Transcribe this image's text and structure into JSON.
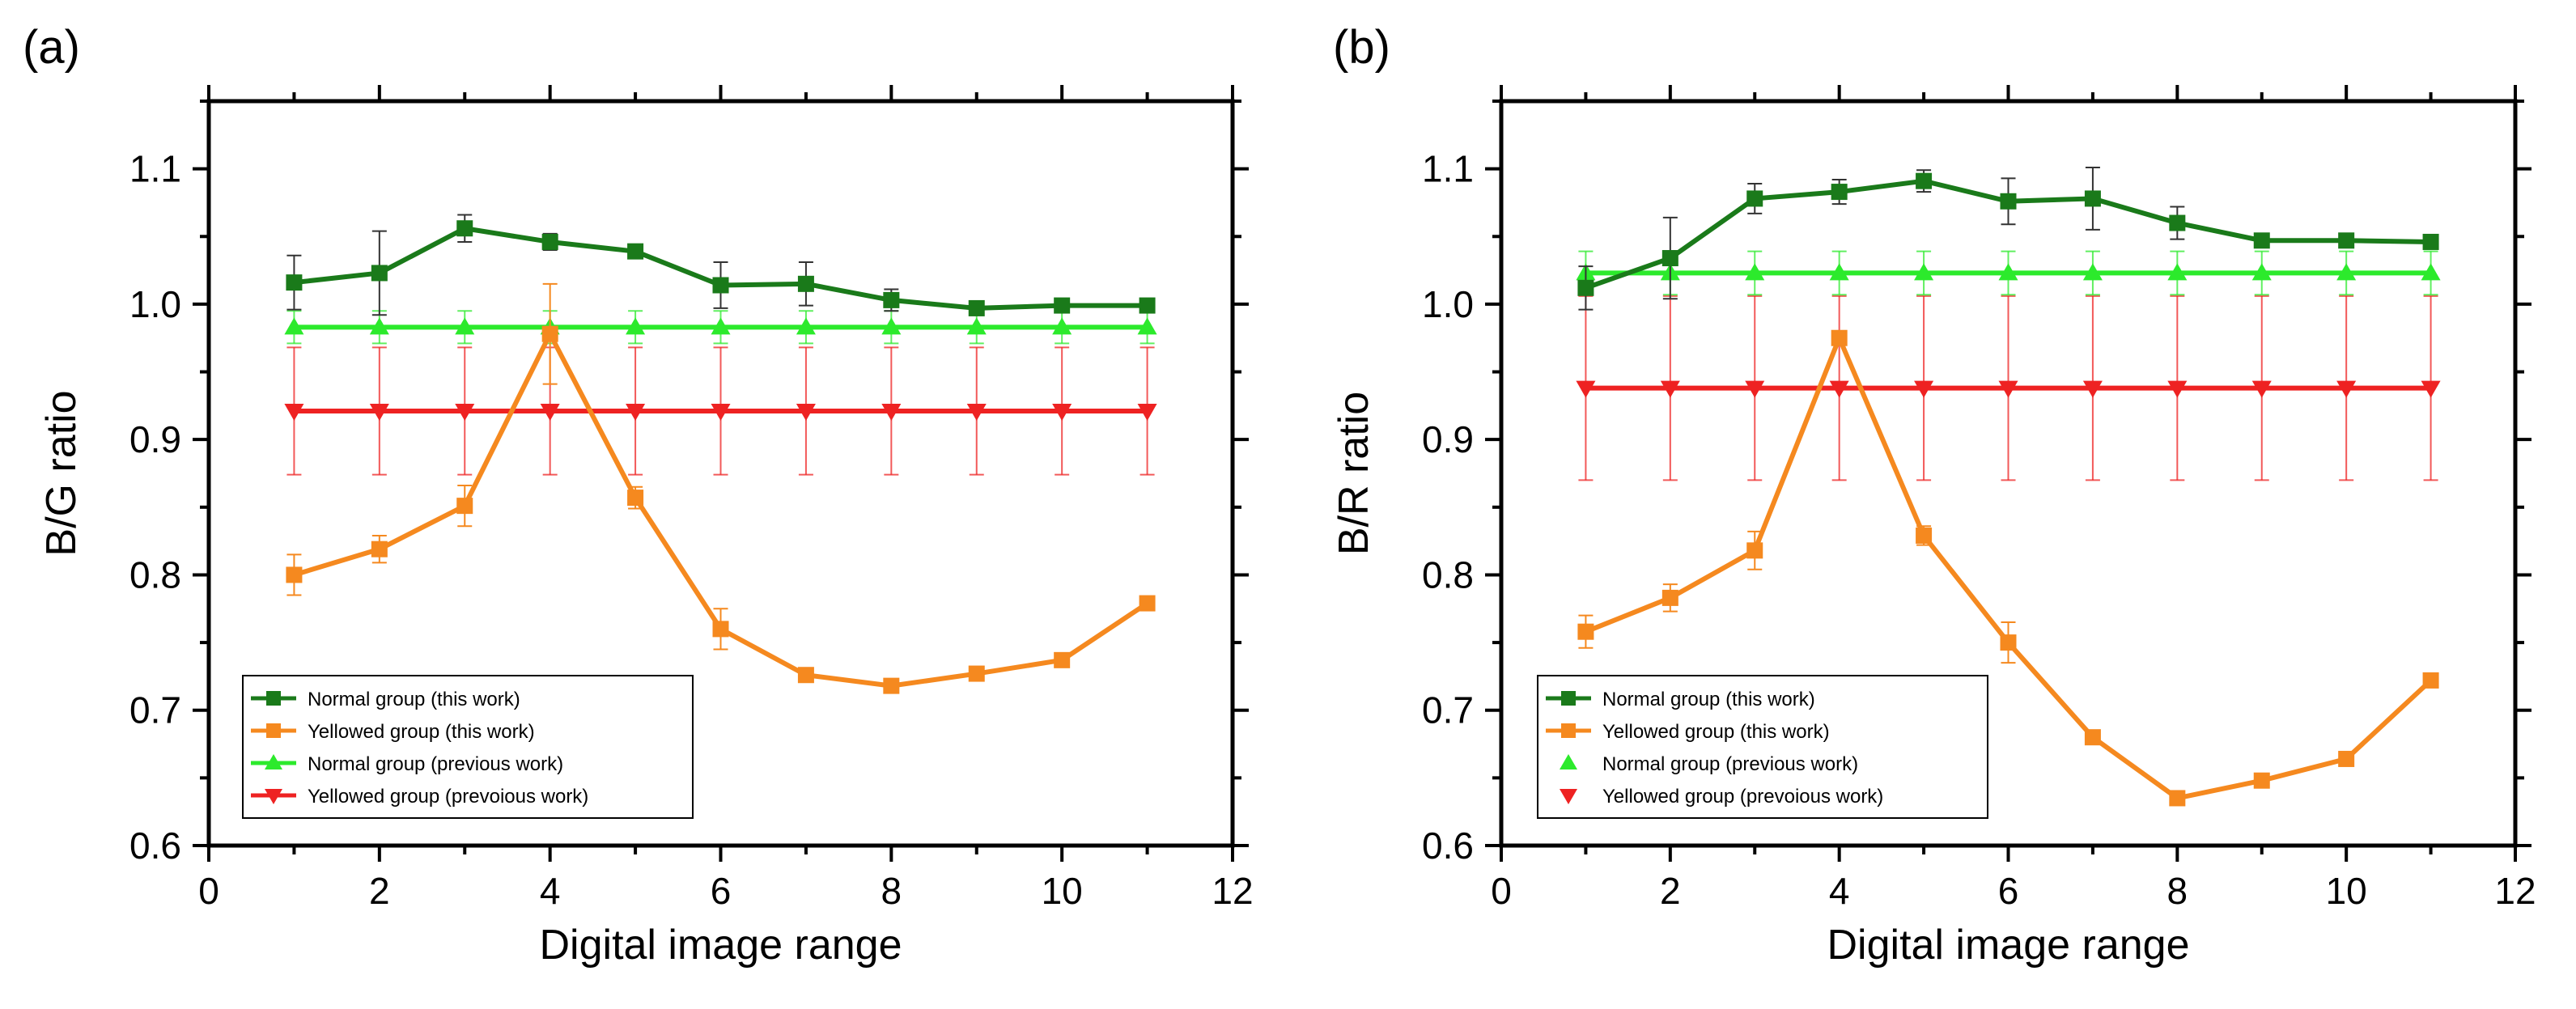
{
  "chart_data": [
    {
      "panel_label": "(a)",
      "type": "line",
      "xlabel": "Digital image range",
      "ylabel": "B/G ratio",
      "xlim": [
        0,
        12
      ],
      "ylim": [
        0.6,
        1.15
      ],
      "xticks": [
        0,
        2,
        4,
        6,
        8,
        10,
        12
      ],
      "xtick_labels": [
        "0",
        "2",
        "4",
        "6",
        "8",
        "10",
        "12"
      ],
      "yticks": [
        0.6,
        0.7,
        0.8,
        0.9,
        1.0,
        1.1
      ],
      "ytick_labels": [
        "0.6",
        "0.7",
        "0.8",
        "0.9",
        "1.0",
        "1.1"
      ],
      "legend_position": "bottom-left",
      "x": [
        1,
        2,
        3,
        4,
        5,
        6,
        7,
        8,
        9,
        10,
        11
      ],
      "series": [
        {
          "name": "Normal group (this work)",
          "color": "#1a7a1a",
          "marker": "square",
          "line": true,
          "values": [
            1.016,
            1.023,
            1.056,
            1.046,
            1.039,
            1.014,
            1.015,
            1.003,
            0.997,
            0.999,
            0.999
          ],
          "errors": [
            0.02,
            0.031,
            0.01,
            0.006,
            0.005,
            0.017,
            0.016,
            0.008,
            0.004,
            0.003,
            0.003
          ]
        },
        {
          "name": "Yellowed group (this work)",
          "color": "#f5891f",
          "marker": "square",
          "line": true,
          "values": [
            0.8,
            0.819,
            0.851,
            0.978,
            0.857,
            0.76,
            0.726,
            0.718,
            0.727,
            0.737,
            0.779
          ],
          "errors": [
            0.015,
            0.01,
            0.015,
            0.037,
            0.008,
            0.015,
            0.004,
            0.003,
            0.004,
            0.004,
            0.004
          ]
        },
        {
          "name": "Normal group (previous work)",
          "color": "#2cea2c",
          "marker": "triangle-up",
          "line": true,
          "values": [
            0.983,
            0.983,
            0.983,
            0.983,
            0.983,
            0.983,
            0.983,
            0.983,
            0.983,
            0.983,
            0.983
          ],
          "errors": [
            0.012,
            0.012,
            0.012,
            0.012,
            0.012,
            0.012,
            0.012,
            0.012,
            0.012,
            0.012,
            0.012
          ]
        },
        {
          "name": "Yellowed group (prevoious work)",
          "color": "#ee2222",
          "marker": "triangle-down",
          "line": true,
          "values": [
            0.921,
            0.921,
            0.921,
            0.921,
            0.921,
            0.921,
            0.921,
            0.921,
            0.921,
            0.921,
            0.921
          ],
          "errors": [
            0.047,
            0.047,
            0.047,
            0.047,
            0.047,
            0.047,
            0.047,
            0.047,
            0.047,
            0.047,
            0.047
          ]
        }
      ]
    },
    {
      "panel_label": "(b)",
      "type": "line",
      "xlabel": "Digital image range",
      "ylabel": "B/R ratio",
      "xlim": [
        0,
        12
      ],
      "ylim": [
        0.6,
        1.15
      ],
      "xticks": [
        0,
        2,
        4,
        6,
        8,
        10,
        12
      ],
      "xtick_labels": [
        "0",
        "2",
        "4",
        "6",
        "8",
        "10",
        "12"
      ],
      "yticks": [
        0.6,
        0.7,
        0.8,
        0.9,
        1.0,
        1.1
      ],
      "ytick_labels": [
        "0.6",
        "0.7",
        "0.8",
        "0.9",
        "1.0",
        "1.1"
      ],
      "legend_position": "bottom-left",
      "x": [
        1,
        2,
        3,
        4,
        5,
        6,
        7,
        8,
        9,
        10,
        11
      ],
      "series": [
        {
          "name": "Normal group (this work)",
          "color": "#1a7a1a",
          "marker": "square",
          "line": true,
          "values": [
            1.012,
            1.034,
            1.078,
            1.083,
            1.091,
            1.076,
            1.078,
            1.06,
            1.047,
            1.047,
            1.046
          ],
          "errors": [
            0.016,
            0.03,
            0.011,
            0.009,
            0.008,
            0.017,
            0.023,
            0.012,
            0.003,
            0.003,
            0.003
          ]
        },
        {
          "name": "Yellowed group (this work)",
          "color": "#f5891f",
          "marker": "square",
          "line": true,
          "values": [
            0.758,
            0.783,
            0.818,
            0.975,
            0.829,
            0.75,
            0.68,
            0.635,
            0.648,
            0.664,
            0.722
          ],
          "errors": [
            0.012,
            0.01,
            0.014,
            0.005,
            0.007,
            0.015,
            0.004,
            0.003,
            0.005,
            0.004,
            0.004
          ]
        },
        {
          "name": "Normal group (previous work)",
          "color": "#2cea2c",
          "marker": "triangle-up",
          "line": true,
          "values": [
            1.023,
            1.023,
            1.023,
            1.023,
            1.023,
            1.023,
            1.023,
            1.023,
            1.023,
            1.023,
            1.023
          ],
          "errors": [
            0.016,
            0.016,
            0.016,
            0.016,
            0.016,
            0.016,
            0.016,
            0.016,
            0.016,
            0.016,
            0.016
          ]
        },
        {
          "name": "Yellowed group (prevoious work)",
          "color": "#ee2222",
          "marker": "triangle-down",
          "line": true,
          "values": [
            0.938,
            0.938,
            0.938,
            0.938,
            0.938,
            0.938,
            0.938,
            0.938,
            0.938,
            0.938,
            0.938
          ],
          "errors": [
            0.068,
            0.068,
            0.068,
            0.068,
            0.068,
            0.068,
            0.068,
            0.068,
            0.068,
            0.068,
            0.068
          ]
        }
      ]
    }
  ]
}
